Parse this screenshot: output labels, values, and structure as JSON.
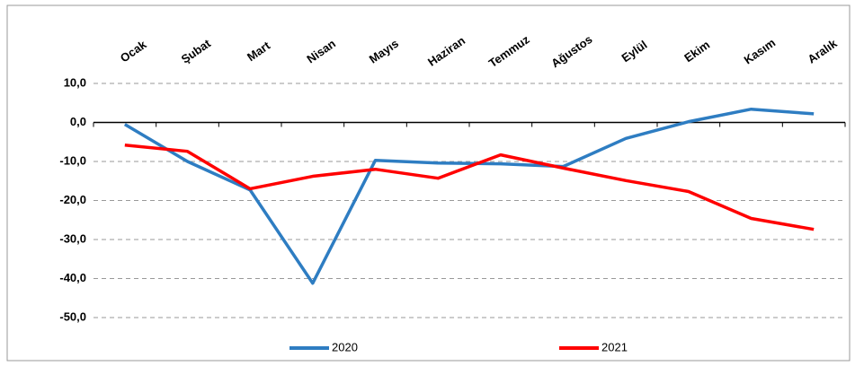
{
  "chart_data": {
    "type": "line",
    "categories": [
      "Ocak",
      "Şubat",
      "Mart",
      "Nisan",
      "Mayıs",
      "Haziran",
      "Temmuz",
      "Ağustos",
      "Eylül",
      "Ekim",
      "Kasım",
      "Aralık"
    ],
    "series": [
      {
        "name": "2020",
        "color": "#2e7dc2",
        "values": [
          -0.5,
          -10,
          -17.3,
          -41.2,
          -9.7,
          -10.4,
          -10.6,
          -11.3,
          -4.1,
          0.2,
          3.4,
          2.2
        ]
      },
      {
        "name": "2021",
        "color": "#ff0000",
        "values": [
          -5.8,
          -7.4,
          -17.0,
          -13.8,
          -12.0,
          -14.3,
          -8.3,
          -11.7,
          -14.9,
          -17.7,
          -24.6,
          -27.4
        ]
      }
    ],
    "ylim": [
      -50,
      10
    ],
    "yticks": [
      {
        "value": -50,
        "label": "-50,0"
      },
      {
        "value": -40,
        "label": "-40,0"
      },
      {
        "value": -30,
        "label": "-30,0"
      },
      {
        "value": -20,
        "label": "-20,0"
      },
      {
        "value": -10,
        "label": "-10,0"
      },
      {
        "value": 0,
        "label": "0,0"
      },
      {
        "value": 10,
        "label": "10,0"
      }
    ],
    "grid": true,
    "legend": "bottom"
  }
}
